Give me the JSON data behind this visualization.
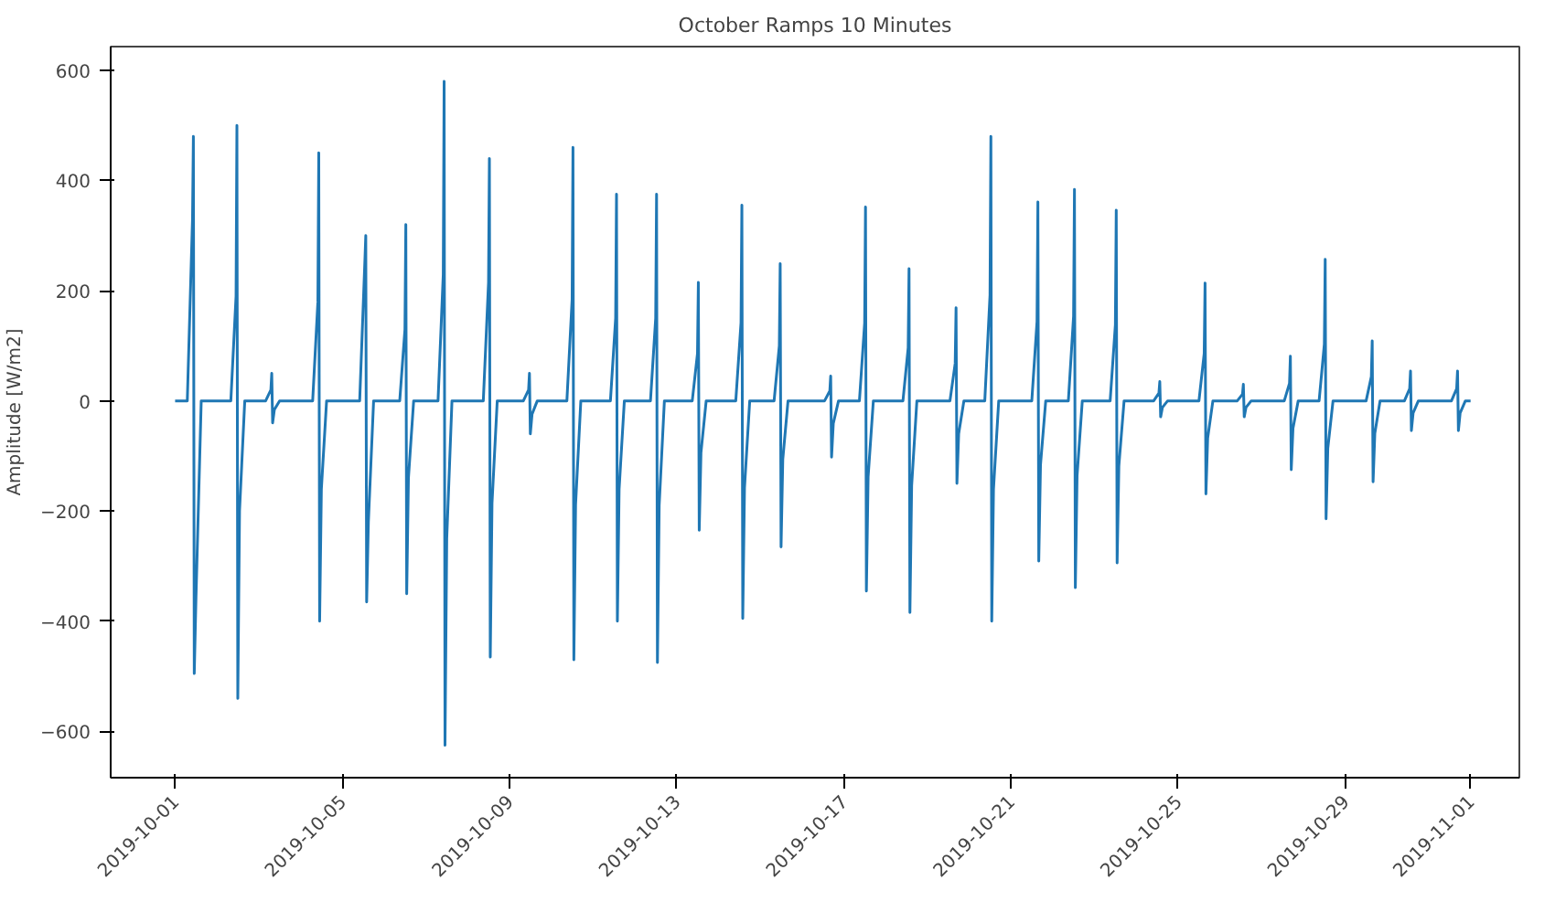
{
  "chart_data": {
    "type": "line",
    "title": "October Ramps 10 Minutes",
    "ylabel": "Amplitude [W/m2]",
    "xlim": [
      "2019-09-29T11:00",
      "2019-11-02T04:00"
    ],
    "ylim": [
      -684,
      643
    ],
    "xticks": [
      "2019-10-01",
      "2019-10-05",
      "2019-10-09",
      "2019-10-13",
      "2019-10-17",
      "2019-10-21",
      "2019-10-25",
      "2019-10-29",
      "2019-11-01"
    ],
    "yticks": [
      -600,
      -400,
      -200,
      0,
      200,
      400,
      600
    ],
    "grid": false,
    "marker": "none",
    "line_style": "solid",
    "series": [
      {
        "color": "#1f77b4",
        "x": [
          "2019-10-01T00:00",
          "2019-10-01T07:00",
          "2019-10-01T10:00",
          "2019-10-01T10:30",
          "2019-10-01T11:00",
          "2019-10-01T12:00",
          "2019-10-01T15:00",
          "2019-10-02T08:00",
          "2019-10-02T11:00",
          "2019-10-02T11:30",
          "2019-10-02T12:00",
          "2019-10-02T13:00",
          "2019-10-02T16:00",
          "2019-10-03T04:00",
          "2019-10-03T07:00",
          "2019-10-03T07:30",
          "2019-10-03T08:00",
          "2019-10-03T09:00",
          "2019-10-03T12:00",
          "2019-10-04T07:00",
          "2019-10-04T10:00",
          "2019-10-04T10:30",
          "2019-10-04T11:00",
          "2019-10-04T12:00",
          "2019-10-04T15:00",
          "2019-10-05T10:00",
          "2019-10-05T13:00",
          "2019-10-05T13:30",
          "2019-10-05T14:00",
          "2019-10-05T15:00",
          "2019-10-05T18:00",
          "2019-10-06T09:00",
          "2019-10-06T12:00",
          "2019-10-06T12:30",
          "2019-10-06T13:00",
          "2019-10-06T14:00",
          "2019-10-06T17:00",
          "2019-10-07T07:00",
          "2019-10-07T10:00",
          "2019-10-07T10:30",
          "2019-10-07T11:00",
          "2019-10-07T12:00",
          "2019-10-07T15:00",
          "2019-10-08T09:00",
          "2019-10-08T12:00",
          "2019-10-08T12:30",
          "2019-10-08T13:00",
          "2019-10-08T14:00",
          "2019-10-08T17:00",
          "2019-10-09T08:00",
          "2019-10-09T11:00",
          "2019-10-09T11:30",
          "2019-10-09T12:00",
          "2019-10-09T13:00",
          "2019-10-09T16:00",
          "2019-10-10T09:00",
          "2019-10-10T12:00",
          "2019-10-10T12:30",
          "2019-10-10T13:00",
          "2019-10-10T14:00",
          "2019-10-10T17:00",
          "2019-10-11T10:00",
          "2019-10-11T13:00",
          "2019-10-11T13:30",
          "2019-10-11T14:00",
          "2019-10-11T15:00",
          "2019-10-11T18:00",
          "2019-10-12T09:00",
          "2019-10-12T12:00",
          "2019-10-12T12:30",
          "2019-10-12T13:00",
          "2019-10-12T14:00",
          "2019-10-12T17:00",
          "2019-10-13T09:00",
          "2019-10-13T12:00",
          "2019-10-13T12:30",
          "2019-10-13T13:00",
          "2019-10-13T14:00",
          "2019-10-13T17:00",
          "2019-10-14T10:00",
          "2019-10-14T13:00",
          "2019-10-14T13:30",
          "2019-10-14T14:00",
          "2019-10-14T15:00",
          "2019-10-14T18:00",
          "2019-10-15T08:00",
          "2019-10-15T11:00",
          "2019-10-15T11:30",
          "2019-10-15T12:00",
          "2019-10-15T13:00",
          "2019-10-15T16:00",
          "2019-10-16T13:00",
          "2019-10-16T16:00",
          "2019-10-16T16:30",
          "2019-10-16T17:00",
          "2019-10-16T18:00",
          "2019-10-16T21:00",
          "2019-10-17T09:00",
          "2019-10-17T12:00",
          "2019-10-17T12:30",
          "2019-10-17T13:00",
          "2019-10-17T14:00",
          "2019-10-17T17:00",
          "2019-10-18T10:00",
          "2019-10-18T13:00",
          "2019-10-18T13:30",
          "2019-10-18T14:00",
          "2019-10-18T15:00",
          "2019-10-18T18:00",
          "2019-10-19T13:00",
          "2019-10-19T16:00",
          "2019-10-19T16:30",
          "2019-10-19T17:00",
          "2019-10-19T18:00",
          "2019-10-19T21:00",
          "2019-10-20T09:00",
          "2019-10-20T12:00",
          "2019-10-20T12:30",
          "2019-10-20T13:00",
          "2019-10-20T14:00",
          "2019-10-20T17:00",
          "2019-10-21T12:00",
          "2019-10-21T15:00",
          "2019-10-21T15:30",
          "2019-10-21T16:00",
          "2019-10-21T17:00",
          "2019-10-21T20:00",
          "2019-10-22T09:00",
          "2019-10-22T12:00",
          "2019-10-22T12:30",
          "2019-10-22T13:00",
          "2019-10-22T14:00",
          "2019-10-22T17:00",
          "2019-10-23T09:00",
          "2019-10-23T12:00",
          "2019-10-23T12:30",
          "2019-10-23T13:00",
          "2019-10-23T14:00",
          "2019-10-23T17:00",
          "2019-10-24T10:00",
          "2019-10-24T13:00",
          "2019-10-24T13:30",
          "2019-10-24T14:00",
          "2019-10-24T15:00",
          "2019-10-24T18:00",
          "2019-10-25T12:00",
          "2019-10-25T15:00",
          "2019-10-25T15:30",
          "2019-10-25T16:00",
          "2019-10-25T17:00",
          "2019-10-25T20:00",
          "2019-10-26T10:00",
          "2019-10-26T13:00",
          "2019-10-26T13:30",
          "2019-10-26T14:00",
          "2019-10-26T15:00",
          "2019-10-26T18:00",
          "2019-10-27T13:00",
          "2019-10-27T16:00",
          "2019-10-27T16:30",
          "2019-10-27T17:00",
          "2019-10-27T18:00",
          "2019-10-27T21:00",
          "2019-10-28T09:00",
          "2019-10-28T12:00",
          "2019-10-28T12:30",
          "2019-10-28T13:00",
          "2019-10-28T14:00",
          "2019-10-28T17:00",
          "2019-10-29T12:00",
          "2019-10-29T15:00",
          "2019-10-29T15:30",
          "2019-10-29T16:00",
          "2019-10-29T17:00",
          "2019-10-29T20:00",
          "2019-10-30T10:00",
          "2019-10-30T13:00",
          "2019-10-30T13:30",
          "2019-10-30T14:00",
          "2019-10-30T15:00",
          "2019-10-30T18:00",
          "2019-10-31T13:00",
          "2019-10-31T16:00",
          "2019-10-31T16:30",
          "2019-10-31T17:00",
          "2019-10-31T18:00",
          "2019-10-31T21:00",
          "2019-11-01T00:00"
        ],
        "values": [
          0,
          0,
          330,
          480,
          -495,
          -355,
          0,
          0,
          190,
          500,
          -540,
          -200,
          0,
          0,
          20,
          50,
          -40,
          -16,
          0,
          0,
          180,
          450,
          -400,
          -160,
          0,
          0,
          255,
          300,
          -365,
          -220,
          0,
          0,
          130,
          320,
          -350,
          -140,
          0,
          0,
          230,
          580,
          -625,
          -250,
          0,
          0,
          215,
          440,
          -465,
          -186,
          0,
          0,
          20,
          50,
          -60,
          -24,
          0,
          0,
          184,
          460,
          -470,
          -188,
          0,
          0,
          150,
          375,
          -400,
          -160,
          0,
          0,
          150,
          375,
          -475,
          -190,
          0,
          0,
          86,
          215,
          -235,
          -94,
          0,
          0,
          142,
          355,
          -395,
          -158,
          0,
          0,
          100,
          249,
          -265,
          -106,
          0,
          0,
          18,
          45,
          -102,
          -41,
          0,
          0,
          141,
          352,
          -345,
          -138,
          0,
          0,
          96,
          240,
          -384,
          -154,
          0,
          0,
          68,
          169,
          -150,
          -60,
          0,
          0,
          192,
          480,
          -400,
          -160,
          0,
          0,
          144,
          361,
          -291,
          -116,
          0,
          0,
          154,
          384,
          -339,
          -136,
          0,
          0,
          138,
          346,
          -294,
          -118,
          0,
          0,
          14,
          35,
          -29,
          -12,
          0,
          0,
          86,
          214,
          -169,
          -68,
          0,
          0,
          12,
          30,
          -29,
          -12,
          0,
          0,
          32,
          81,
          -125,
          -50,
          0,
          0,
          103,
          257,
          -214,
          -86,
          0,
          0,
          44,
          109,
          -147,
          -59,
          0,
          0,
          22,
          54,
          -54,
          -22,
          0,
          0,
          22,
          54,
          -54,
          -22,
          0,
          0
        ]
      }
    ]
  }
}
